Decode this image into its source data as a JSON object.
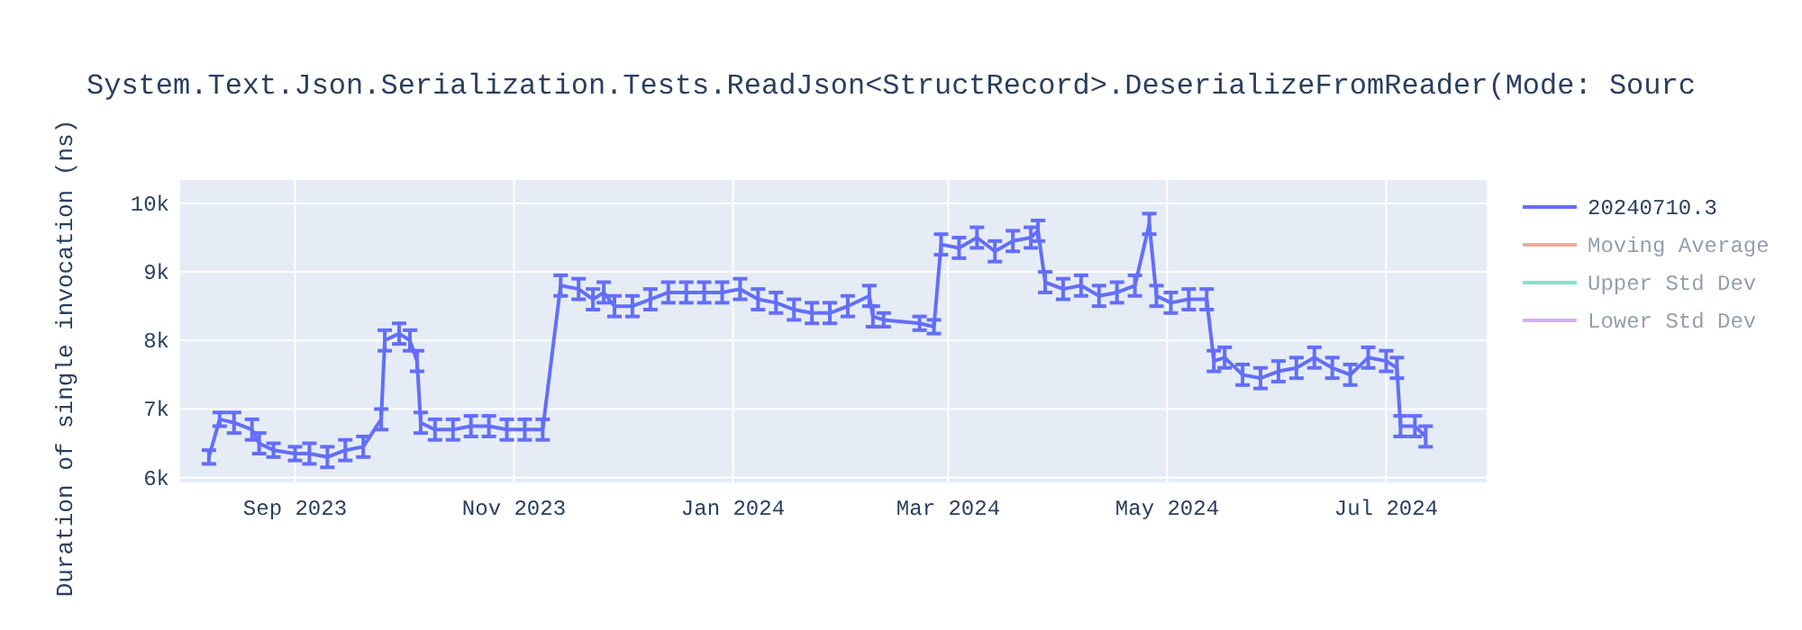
{
  "chart_data": {
    "type": "line",
    "title": "System.Text.Json.Serialization.Tests.ReadJson<StructRecord>.DeserializeFromReader(Mode: Sourc",
    "ylabel": "Duration of single invocation (ns)",
    "x": [
      "2023-08-08",
      "2023-08-11",
      "2023-08-15",
      "2023-08-20",
      "2023-08-22",
      "2023-08-26",
      "2023-09-01",
      "2023-09-05",
      "2023-09-10",
      "2023-09-15",
      "2023-09-20",
      "2023-09-25",
      "2023-09-26",
      "2023-09-30",
      "2023-10-03",
      "2023-10-05",
      "2023-10-06",
      "2023-10-10",
      "2023-10-15",
      "2023-10-20",
      "2023-10-25",
      "2023-10-30",
      "2023-11-04",
      "2023-11-09",
      "2023-11-14",
      "2023-11-19",
      "2023-11-23",
      "2023-11-26",
      "2023-11-29",
      "2023-12-04",
      "2023-12-09",
      "2023-12-14",
      "2023-12-19",
      "2023-12-24",
      "2023-12-29",
      "2024-01-03",
      "2024-01-08",
      "2024-01-13",
      "2024-01-18",
      "2024-01-23",
      "2024-01-28",
      "2024-02-02",
      "2024-02-08",
      "2024-02-09",
      "2024-02-12",
      "2024-02-22",
      "2024-02-26",
      "2024-02-28",
      "2024-03-04",
      "2024-03-09",
      "2024-03-14",
      "2024-03-19",
      "2024-03-24",
      "2024-03-26",
      "2024-03-28",
      "2024-04-02",
      "2024-04-07",
      "2024-04-12",
      "2024-04-17",
      "2024-04-22",
      "2024-04-26",
      "2024-04-28",
      "2024-05-02",
      "2024-05-07",
      "2024-05-12",
      "2024-05-14",
      "2024-05-17",
      "2024-05-22",
      "2024-05-27",
      "2024-06-01",
      "2024-06-06",
      "2024-06-11",
      "2024-06-16",
      "2024-06-21",
      "2024-06-26",
      "2024-07-01",
      "2024-07-04",
      "2024-07-05",
      "2024-07-09",
      "2024-07-12"
    ],
    "series": [
      {
        "name": "20240710.3",
        "color": "#636efa",
        "values": [
          6300,
          6850,
          6800,
          6700,
          6500,
          6400,
          6350,
          6350,
          6300,
          6400,
          6450,
          6850,
          8000,
          8100,
          8000,
          7700,
          6800,
          6700,
          6700,
          6750,
          6750,
          6700,
          6700,
          6700,
          8800,
          8750,
          8600,
          8700,
          8500,
          8500,
          8600,
          8700,
          8700,
          8700,
          8700,
          8750,
          8600,
          8550,
          8450,
          8400,
          8400,
          8500,
          8650,
          8350,
          8300,
          8250,
          8200,
          9400,
          9350,
          9500,
          9300,
          9450,
          9500,
          9600,
          8850,
          8750,
          8800,
          8650,
          8700,
          8800,
          9700,
          8650,
          8550,
          8600,
          8600,
          7700,
          7750,
          7500,
          7450,
          7550,
          7600,
          7750,
          7600,
          7500,
          7750,
          7700,
          7600,
          6750,
          6750,
          6600
        ],
        "errors": [
          100,
          100,
          150,
          150,
          150,
          100,
          100,
          150,
          150,
          150,
          150,
          150,
          150,
          150,
          150,
          150,
          150,
          150,
          150,
          150,
          150,
          150,
          150,
          150,
          150,
          150,
          150,
          150,
          150,
          150,
          150,
          150,
          150,
          150,
          150,
          150,
          150,
          150,
          150,
          150,
          150,
          150,
          150,
          150,
          100,
          100,
          100,
          150,
          150,
          150,
          150,
          150,
          150,
          150,
          150,
          150,
          150,
          150,
          150,
          150,
          150,
          150,
          150,
          150,
          150,
          150,
          150,
          150,
          150,
          150,
          150,
          150,
          150,
          150,
          150,
          150,
          150,
          150,
          150,
          150
        ]
      },
      {
        "name": "Moving Average",
        "color": "#ef553b",
        "values": [
          null,
          null,
          null,
          null,
          null,
          null,
          null,
          null,
          null,
          null,
          null,
          null,
          null,
          null,
          null,
          null,
          null,
          null,
          null,
          null,
          null,
          null,
          null,
          null,
          null,
          null,
          null,
          null,
          null,
          null,
          null,
          null,
          null,
          null,
          null,
          null,
          null,
          null,
          null,
          null,
          null,
          null,
          null,
          null,
          null,
          null,
          null,
          null,
          null,
          null,
          null,
          null,
          null,
          null,
          null,
          null,
          null,
          null,
          null,
          null,
          null,
          null,
          null,
          null,
          null,
          null,
          null,
          null,
          null,
          null,
          null,
          null,
          null,
          null,
          null,
          null,
          null,
          null,
          null,
          null
        ]
      },
      {
        "name": "Upper Std Dev",
        "color": "#00cc96",
        "values": [
          null,
          null,
          null,
          null,
          null,
          null,
          null,
          null,
          null,
          null,
          null,
          null,
          null,
          null,
          null,
          null,
          null,
          null,
          null,
          null,
          null,
          null,
          null,
          null,
          null,
          null,
          null,
          null,
          null,
          null,
          null,
          null,
          null,
          null,
          null,
          null,
          null,
          null,
          null,
          null,
          null,
          null,
          null,
          null,
          null,
          null,
          null,
          null,
          null,
          null,
          null,
          null,
          null,
          null,
          null,
          null,
          null,
          null,
          null,
          null,
          null,
          null,
          null,
          null,
          null,
          null,
          null,
          null,
          null,
          null,
          null,
          null,
          null,
          null,
          null,
          null,
          null,
          null,
          null,
          null
        ]
      },
      {
        "name": "Lower Std Dev",
        "color": "#ab63fa",
        "values": [
          null,
          null,
          null,
          null,
          null,
          null,
          null,
          null,
          null,
          null,
          null,
          null,
          null,
          null,
          null,
          null,
          null,
          null,
          null,
          null,
          null,
          null,
          null,
          null,
          null,
          null,
          null,
          null,
          null,
          null,
          null,
          null,
          null,
          null,
          null,
          null,
          null,
          null,
          null,
          null,
          null,
          null,
          null,
          null,
          null,
          null,
          null,
          null,
          null,
          null,
          null,
          null,
          null,
          null,
          null,
          null,
          null,
          null,
          null,
          null,
          null,
          null,
          null,
          null,
          null,
          null,
          null,
          null,
          null,
          null,
          null,
          null,
          null,
          null,
          null,
          null,
          null,
          null,
          null,
          null
        ]
      }
    ],
    "xlim": [
      "2023-07-31",
      "2024-07-29"
    ],
    "xticks": [
      {
        "value": "2023-09-01",
        "label": "Sep 2023"
      },
      {
        "value": "2023-11-01",
        "label": "Nov 2023"
      },
      {
        "value": "2024-01-01",
        "label": "Jan 2024"
      },
      {
        "value": "2024-03-01",
        "label": "Mar 2024"
      },
      {
        "value": "2024-05-01",
        "label": "May 2024"
      },
      {
        "value": "2024-07-01",
        "label": "Jul 2024"
      }
    ],
    "ylim": [
      5930,
      10340
    ],
    "yticks": [
      {
        "value": 6000,
        "label": "6k"
      },
      {
        "value": 7000,
        "label": "7k"
      },
      {
        "value": 8000,
        "label": "8k"
      },
      {
        "value": 9000,
        "label": "9k"
      },
      {
        "value": 10000,
        "label": "10k"
      }
    ],
    "grid": true,
    "legend": "right",
    "line_style": "solid"
  }
}
